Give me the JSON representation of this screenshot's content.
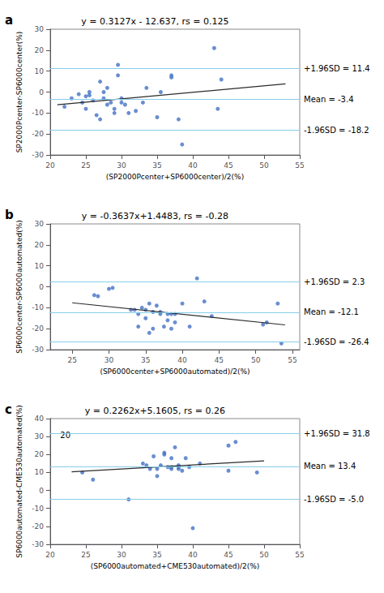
{
  "chart_data": [
    {
      "type": "scatter",
      "panel_label": "a",
      "title": "y = 0.3127x - 12.637, rs = 0.125",
      "xlabel": "(SP2000Pcenter+SP6000center)/2(%)",
      "ylabel": "SP2000Pcenter-SP6000center(%)",
      "xlim": [
        20,
        55
      ],
      "ylim": [
        -30,
        30
      ],
      "xticks": [
        20,
        25,
        30,
        35,
        40,
        45,
        50,
        55
      ],
      "yticks": [
        -30,
        -20,
        -10,
        0,
        10,
        20,
        30
      ],
      "grid": false,
      "series": [
        {
          "type": "scatter",
          "color": "#4472C4",
          "x": [
            22,
            23,
            24,
            24.5,
            25,
            25,
            25.5,
            25.5,
            26,
            26.5,
            27,
            27,
            27.5,
            27.5,
            28,
            28,
            28.5,
            29,
            29,
            29.5,
            29.5,
            30,
            30,
            30.5,
            31,
            32,
            33,
            33.5,
            35,
            35.5,
            37,
            37,
            38,
            38.5,
            43,
            43.5,
            44
          ],
          "values": [
            -7,
            -3,
            -1,
            -5,
            -2,
            -8,
            -1.5,
            0,
            -4,
            -11,
            -13,
            5,
            -3,
            0,
            -6,
            2,
            -5,
            -10,
            -8,
            13,
            8,
            -5,
            -3,
            -6,
            -10,
            -9,
            -5,
            2,
            -12,
            0,
            8,
            7,
            -13,
            -25,
            21,
            -8,
            6
          ]
        },
        {
          "type": "line",
          "color": "#2b2b2b",
          "x": [
            21,
            53
          ],
          "values": [
            -6.0703,
            3.9361
          ]
        }
      ],
      "reference_lines": [
        {
          "y": 11.4,
          "label": "+1.96SD = 11.4",
          "color": "#87CEEB"
        },
        {
          "y": -3.4,
          "label": "Mean = -3.4",
          "color": "#87CEEB"
        },
        {
          "y": -18.2,
          "label": "-1.96SD = -18.2",
          "color": "#87CEEB"
        }
      ]
    },
    {
      "type": "scatter",
      "panel_label": "b",
      "title": "y = -0.3637x+1.4483, rs = -0.28",
      "xlabel": "(SP6000center+SP6000automated)/2(%)",
      "ylabel": "SP6000center-SP6000automated(%)",
      "xlim": [
        22,
        56
      ],
      "ylim": [
        -30,
        30
      ],
      "xticks": [
        25,
        30,
        35,
        40,
        45,
        50,
        55
      ],
      "yticks": [
        -30,
        -20,
        -10,
        0,
        10,
        20,
        30
      ],
      "grid": false,
      "series": [
        {
          "type": "scatter",
          "color": "#4472C4",
          "x": [
            28,
            28.5,
            30,
            30.5,
            33,
            33.5,
            34,
            34,
            34.5,
            35,
            35,
            35.5,
            35.5,
            36,
            36,
            36.5,
            37,
            37,
            37.5,
            38,
            38,
            38.5,
            38.5,
            39,
            39,
            40,
            41,
            42,
            43,
            44,
            51,
            51.5,
            53,
            53.5
          ],
          "values": [
            -4,
            -4.5,
            -1,
            -0.5,
            -11,
            -11,
            -19,
            -13,
            -10,
            -11,
            -15,
            -8,
            -22,
            -20,
            -12,
            -9,
            -13,
            -12,
            -19,
            -13,
            -16,
            -20,
            -13,
            -13,
            -17,
            -8,
            -19,
            4,
            -7,
            -14,
            -18,
            -17,
            -8,
            -27
          ]
        },
        {
          "type": "line",
          "color": "#2b2b2b",
          "x": [
            25,
            54
          ],
          "values": [
            -7.6442,
            -18.1915
          ]
        }
      ],
      "reference_lines": [
        {
          "y": 2.3,
          "label": "+1.96SD = 2.3",
          "color": "#87CEEB"
        },
        {
          "y": -12.1,
          "label": "Mean = -12.1",
          "color": "#87CEEB"
        },
        {
          "y": -26.4,
          "label": "-1.96SD = -26.4",
          "color": "#87CEEB"
        }
      ]
    },
    {
      "type": "scatter",
      "panel_label": "c",
      "title": "y = 0.2262x+5.1605, rs = 0.26",
      "xlabel": "(SP6000automated+CME530automated)/2(%)",
      "ylabel": "SP6000automated-CME530automated(%)",
      "xlim": [
        20,
        55
      ],
      "ylim": [
        -30,
        40
      ],
      "xticks": [
        20,
        25,
        30,
        35,
        40,
        45,
        50,
        55
      ],
      "yticks": [
        -30,
        -20,
        -10,
        0,
        10,
        20,
        30,
        40
      ],
      "grid": false,
      "annotations": [
        "20"
      ],
      "series": [
        {
          "type": "scatter",
          "color": "#4472C4",
          "x": [
            24.5,
            26,
            31,
            33,
            33.5,
            34,
            34.5,
            35,
            35,
            35.5,
            36,
            36,
            36.5,
            37,
            37,
            37,
            37.5,
            38,
            38,
            38,
            38.5,
            39,
            39.5,
            40,
            41,
            45,
            45,
            46,
            49
          ],
          "values": [
            10,
            6,
            -5,
            15,
            14,
            12,
            19,
            8,
            12,
            14,
            21,
            20,
            13,
            18,
            13,
            12,
            24,
            12,
            14,
            13,
            11,
            18,
            13,
            -21,
            15,
            11,
            25,
            27,
            10
          ]
        },
        {
          "type": "line",
          "color": "#2b2b2b",
          "x": [
            23,
            50
          ],
          "values": [
            10.3631,
            16.4705
          ]
        }
      ],
      "reference_lines": [
        {
          "y": 31.8,
          "label": "+1.96SD = 31.8",
          "color": "#87CEEB"
        },
        {
          "y": 13.4,
          "label": "Mean = 13.4",
          "color": "#87CEEB"
        },
        {
          "y": -5.0,
          "label": "-1.96SD = -5.0",
          "color": "#87CEEB"
        }
      ]
    }
  ]
}
